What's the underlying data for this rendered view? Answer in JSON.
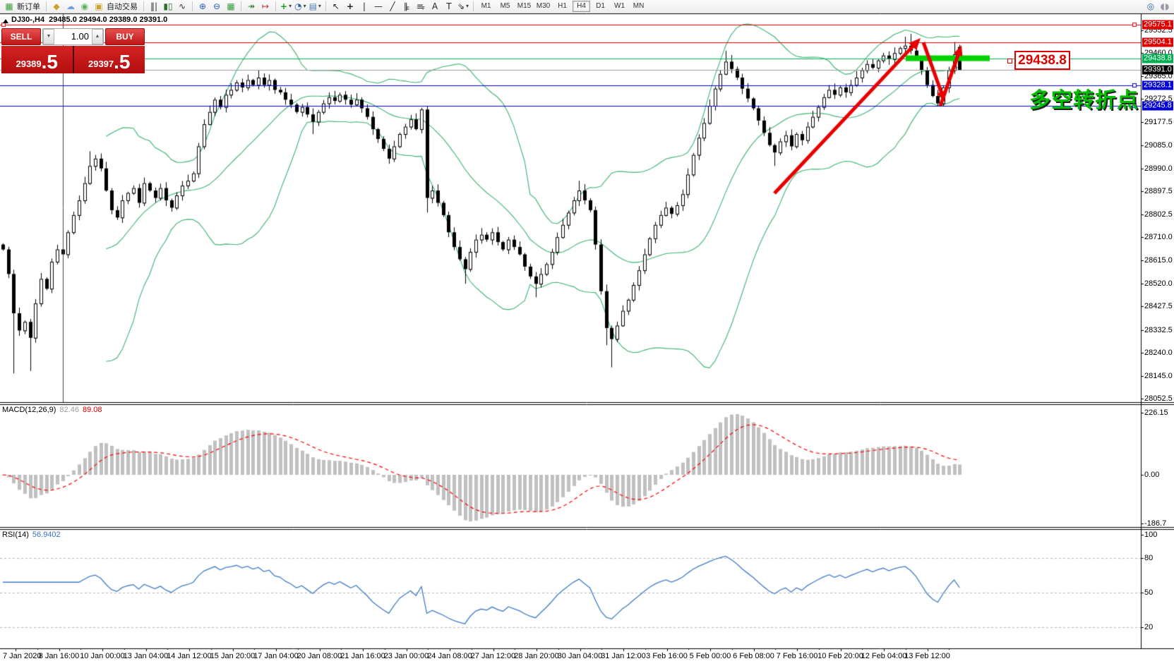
{
  "toolbar": {
    "groups": [
      [
        {
          "t": "btn",
          "name": "new-order-button",
          "glyph": "▦",
          "color": "#3f9e3f"
        },
        {
          "t": "lbl",
          "name": "new-order-label",
          "label": "新订单"
        }
      ],
      [
        {
          "t": "btn",
          "name": "favorites-icon",
          "glyph": "◆",
          "color": "#c9a227"
        },
        {
          "t": "btn",
          "name": "community-icon",
          "glyph": "☁",
          "color": "#6f9fe0"
        },
        {
          "t": "btn",
          "name": "signals-icon",
          "glyph": "◉",
          "color": "#58b058"
        },
        {
          "t": "btn",
          "name": "autotrading-button",
          "glyph": "▣",
          "color": "#c9a227"
        },
        {
          "t": "lbl",
          "name": "autotrading-label",
          "label": "自动交易"
        }
      ],
      [
        {
          "t": "btn",
          "name": "bar-chart-icon",
          "glyph": "‖|",
          "color": "#333333"
        },
        {
          "t": "btn",
          "name": "candlestick-chart-icon",
          "glyph": "▮▯",
          "color": "#2a6e2a"
        },
        {
          "t": "btn",
          "name": "line-chart-icon",
          "glyph": "∿",
          "color": "#333333"
        }
      ],
      [
        {
          "t": "btn",
          "name": "zoom-in-icon",
          "glyph": "⊕",
          "color": "#2a5db0"
        },
        {
          "t": "btn",
          "name": "zoom-out-icon",
          "glyph": "⊖",
          "color": "#2a5db0"
        },
        {
          "t": "btn",
          "name": "tile-windows-icon",
          "glyph": "▦",
          "color": "#3a9e3a"
        }
      ],
      [
        {
          "t": "btn",
          "name": "auto-scroll-icon",
          "glyph": "↠",
          "color": "#2a7e2a"
        },
        {
          "t": "btn",
          "name": "chart-shift-icon",
          "glyph": "↦",
          "color": "#b03030"
        }
      ],
      [
        {
          "t": "btn",
          "name": "indicators-icon",
          "glyph": "+",
          "color": "#1e9e1e",
          "caret": true
        },
        {
          "t": "btn",
          "name": "periods-icon",
          "glyph": "◔",
          "color": "#2a5db0",
          "caret": true
        },
        {
          "t": "btn",
          "name": "templates-icon",
          "glyph": "▤",
          "color": "#4a7ab5",
          "caret": true
        }
      ],
      [
        {
          "t": "btn",
          "name": "cursor-icon",
          "glyph": "↖",
          "color": "#222222"
        },
        {
          "t": "btn",
          "name": "crosshair-icon",
          "glyph": "+",
          "color": "#222222"
        },
        {
          "t": "btn",
          "name": "vertical-line-icon",
          "glyph": "|",
          "color": "#222222"
        },
        {
          "t": "btn",
          "name": "horizontal-line-icon",
          "glyph": "—",
          "color": "#222222"
        },
        {
          "t": "btn",
          "name": "trendline-icon",
          "glyph": "╱",
          "color": "#222222"
        },
        {
          "t": "btn",
          "name": "equidistant-channel-icon",
          "glyph": "∥",
          "sub": "E",
          "color": "#222222"
        },
        {
          "t": "btn",
          "name": "fibonacci-icon",
          "glyph": "≡",
          "sub": "F",
          "color": "#222222"
        },
        {
          "t": "btn",
          "name": "text-icon",
          "glyph": "A",
          "color": "#222222"
        },
        {
          "t": "btn",
          "name": "text-label-icon",
          "glyph": "T",
          "color": "#222222"
        },
        {
          "t": "btn",
          "name": "arrows-icon",
          "glyph": "⇘",
          "color": "#222222",
          "caret": true
        }
      ]
    ],
    "timeframes": [
      "M1",
      "M5",
      "M15",
      "M30",
      "H1",
      "H4",
      "D1",
      "W1",
      "MN"
    ],
    "active_timeframe": "H4",
    "right_icons": [
      {
        "name": "search-icon",
        "glyph": "◎",
        "color": "#2a5db0"
      },
      {
        "name": "chat-icon",
        "glyph": "◖◗",
        "color": "#9a9aa8"
      }
    ]
  },
  "chart_header": {
    "symbol_period": "DJ30-,H4",
    "ohlc_text": "29485.0 29494.0 29389.0 29391.0"
  },
  "trade_panel": {
    "sell_label": "SELL",
    "buy_label": "BUY",
    "volume": "1.00",
    "sell_price_main": "29389",
    "sell_price_frac": ".5",
    "buy_price_main": "29397",
    "buy_price_frac": ".5"
  },
  "price_axis": {
    "ticks": [
      "29552.5",
      "29460.0",
      "29365.0",
      "29272.5",
      "29177.5",
      "29085.0",
      "28990.0",
      "28897.5",
      "28802.5",
      "28710.0",
      "28615.0",
      "28520.0",
      "28427.5",
      "28332.5",
      "28240.0",
      "28145.0",
      "28052.5"
    ],
    "badges": [
      {
        "text": "29575.1",
        "price": 29575.1,
        "bg": "#e00000"
      },
      {
        "text": "29504.1",
        "price": 29504.1,
        "bg": "#e00000"
      },
      {
        "text": "29438.8",
        "price": 29438.8,
        "bg": "#00b050"
      },
      {
        "text": "29391.0",
        "price": 29391.0,
        "bg": "#000000"
      },
      {
        "text": "29328.1",
        "price": 29328.1,
        "bg": "#0000d2"
      },
      {
        "text": "29245.8",
        "price": 29245.8,
        "bg": "#0000d2"
      }
    ]
  },
  "indicators": {
    "macd": {
      "name_text": "MACD(12,26,9)",
      "value1": "82.46",
      "value2": "89.08",
      "axis_labels": [
        "226.15",
        "0.00",
        "-186.7"
      ]
    },
    "rsi": {
      "name_text": "RSI(14)",
      "value": "56.9402",
      "axis_labels": [
        "100",
        "80",
        "50",
        "20"
      ],
      "levels": [
        80,
        50,
        20
      ]
    }
  },
  "time_axis": {
    "labels": [
      "7 Jan 2020",
      "8 Jan 16:00",
      "10 Jan 00:00",
      "13 Jan 04:00",
      "14 Jan 12:00",
      "15 Jan 20:00",
      "17 Jan 04:00",
      "20 Jan 08:00",
      "21 Jan 16:00",
      "23 Jan 00:00",
      "24 Jan 08:00",
      "27 Jan 12:00",
      "28 Jan 20:00",
      "30 Jan 04:00",
      "31 Jan 12:00",
      "3 Feb 16:00",
      "5 Feb 00:00",
      "6 Feb 08:00",
      "7 Feb 16:00",
      "10 Feb 20:00",
      "12 Feb 04:00",
      "13 Feb 12:00"
    ]
  },
  "annotations": {
    "price_label": "29438.8",
    "turning_point_text": "多空转折点",
    "arrow_color": "#e80000",
    "highlight_color": "#00d200"
  },
  "chart_data": {
    "type": "candlestick",
    "symbol": "DJ30-",
    "period": "H4",
    "last_bar_ohlc": {
      "open": 29485.0,
      "high": 29494.0,
      "low": 29389.0,
      "close": 29391.0
    },
    "current_bid": 29389.5,
    "current_ask": 29397.5,
    "current_price": 29391.0,
    "ylim": [
      28038,
      29621.5
    ],
    "closes": [
      28660,
      28560,
      28400,
      28330,
      28365,
      28300,
      28440,
      28540,
      28500,
      28610,
      28660,
      28640,
      28730,
      28800,
      28860,
      28930,
      29000,
      29030,
      28990,
      28900,
      28820,
      28790,
      28860,
      28890,
      28910,
      28850,
      28930,
      28900,
      28870,
      28910,
      28860,
      28830,
      28880,
      28920,
      28940,
      28970,
      29080,
      29170,
      29220,
      29270,
      29240,
      29290,
      29310,
      29340,
      29320,
      29350,
      29330,
      29360,
      29330,
      29350,
      29310,
      29300,
      29270,
      29250,
      29220,
      29240,
      29210,
      29180,
      29220,
      29255,
      29280,
      29265,
      29290,
      29270,
      29250,
      29270,
      29235,
      29200,
      29150,
      29110,
      29070,
      29030,
      29080,
      29130,
      29160,
      29190,
      29150,
      29230,
      28870,
      28900,
      28850,
      28800,
      28730,
      28670,
      28620,
      28580,
      28650,
      28700,
      28720,
      28700,
      28730,
      28690,
      28660,
      28700,
      28670,
      28640,
      28590,
      28550,
      28520,
      28560,
      28600,
      28650,
      28710,
      28760,
      28810,
      28860,
      28900,
      28860,
      28820,
      28680,
      28490,
      28340,
      28295,
      28350,
      28410,
      28455,
      28515,
      28575,
      28640,
      28705,
      28760,
      28800,
      28830,
      28805,
      28840,
      28885,
      28965,
      29045,
      29115,
      29175,
      29245,
      29315,
      29375,
      29425,
      29395,
      29360,
      29315,
      29275,
      29235,
      29185,
      29135,
      29085,
      29055,
      29100,
      29125,
      29080,
      29130,
      29105,
      29160,
      29200,
      29240,
      29280,
      29310,
      29290,
      29320,
      29300,
      29330,
      29360,
      29390,
      29415,
      29400,
      29430,
      29450,
      29435,
      29460,
      29480,
      29490,
      29470,
      29440,
      29390,
      29330,
      29285,
      29255,
      29320,
      29390,
      29455,
      29391
    ],
    "wick_overrides": {
      "2": {
        "low": 28155
      },
      "5": {
        "low": 28165
      },
      "16": {
        "high": 29060
      },
      "47": {
        "high": 29390
      },
      "57": {
        "low": 29130
      },
      "78": {
        "low": 28810
      },
      "85": {
        "low": 28520
      },
      "98": {
        "low": 28465
      },
      "106": {
        "high": 28940
      },
      "111": {
        "low": 28270
      },
      "112": {
        "low": 28180
      },
      "133": {
        "high": 29470
      },
      "142": {
        "low": 29000
      },
      "166": {
        "high": 29527
      },
      "167": {
        "high": 29538
      },
      "172": {
        "low": 29245
      },
      "175": {
        "high": 29505
      },
      "176": {
        "open": 29485,
        "high": 29494,
        "low": 29389
      }
    },
    "bollinger": {
      "period": 20,
      "deviation": 2,
      "color": "#3cb371"
    },
    "horizontal_lines": [
      {
        "price": 29575.1,
        "color": "#e00000"
      },
      {
        "price": 29504.1,
        "color": "#e00000"
      },
      {
        "price": 29438.8,
        "color": "#00b050"
      },
      {
        "price": 29328.1,
        "color": "#0000d2"
      },
      {
        "price": 29245.8,
        "color": "#0000d2"
      }
    ],
    "current_price_line_color": "#9a9a9a",
    "vertical_line_bar_index": 11,
    "macd": {
      "params": [
        12,
        26,
        9
      ],
      "histogram_color": "#c0c0c0",
      "signal_color": "#ff0000",
      "last_values": [
        82.46,
        89.08
      ],
      "axis_range": [
        226.15,
        -186.7
      ]
    },
    "rsi": {
      "period": 14,
      "line_color": "#3e7bc6",
      "last_value": 56.9402,
      "levels": [
        80,
        50,
        20
      ]
    }
  }
}
